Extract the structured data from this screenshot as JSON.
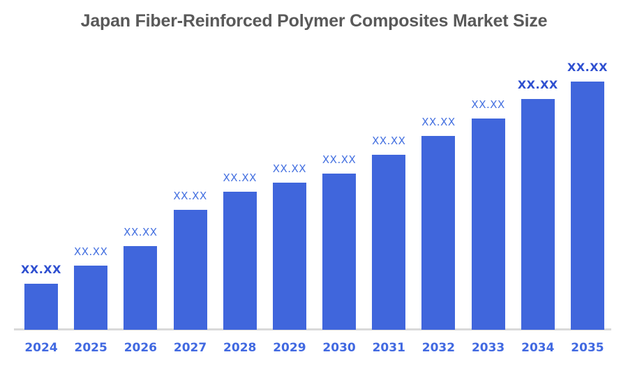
{
  "title": "Japan Fiber-Reinforced Polymer Composites Market Size",
  "colors": {
    "background": "#ffffff",
    "bar": "#4066dc",
    "title": "#595959",
    "axis_line": "#d9d9d9",
    "value_label_regular": "#4470e0",
    "value_label_bold": "#2e4fd0",
    "year_label": "#4169e1"
  },
  "chart_data": {
    "type": "bar",
    "title": "Japan Fiber-Reinforced Polymer Composites Market Size",
    "categories": [
      "2024",
      "2025",
      "2026",
      "2027",
      "2028",
      "2029",
      "2030",
      "2031",
      "2032",
      "2033",
      "2034",
      "2035"
    ],
    "values": [
      18.5,
      25.8,
      33.7,
      48.3,
      55.6,
      59.3,
      62.9,
      70.5,
      78.1,
      85.1,
      93.0,
      100
    ],
    "value_labels": [
      "XX.XX",
      "XX.XX",
      "XX.XX",
      "XX.XX",
      "XX.XX",
      "XX.XX",
      "XX.XX",
      "XX.XX",
      "XX.XX",
      "XX.XX",
      "XX.XX",
      "XX.XX"
    ],
    "emphasized_labels": [
      true,
      false,
      false,
      false,
      false,
      false,
      false,
      false,
      false,
      false,
      true,
      true
    ],
    "xlabel": "",
    "ylabel": "",
    "ylim": [
      0,
      105
    ],
    "grid": false,
    "legend": false,
    "y_axis_shown": false,
    "note": "values are relative bar heights (tallest bar = 100); displayed data labels are XX.XX placeholders"
  }
}
